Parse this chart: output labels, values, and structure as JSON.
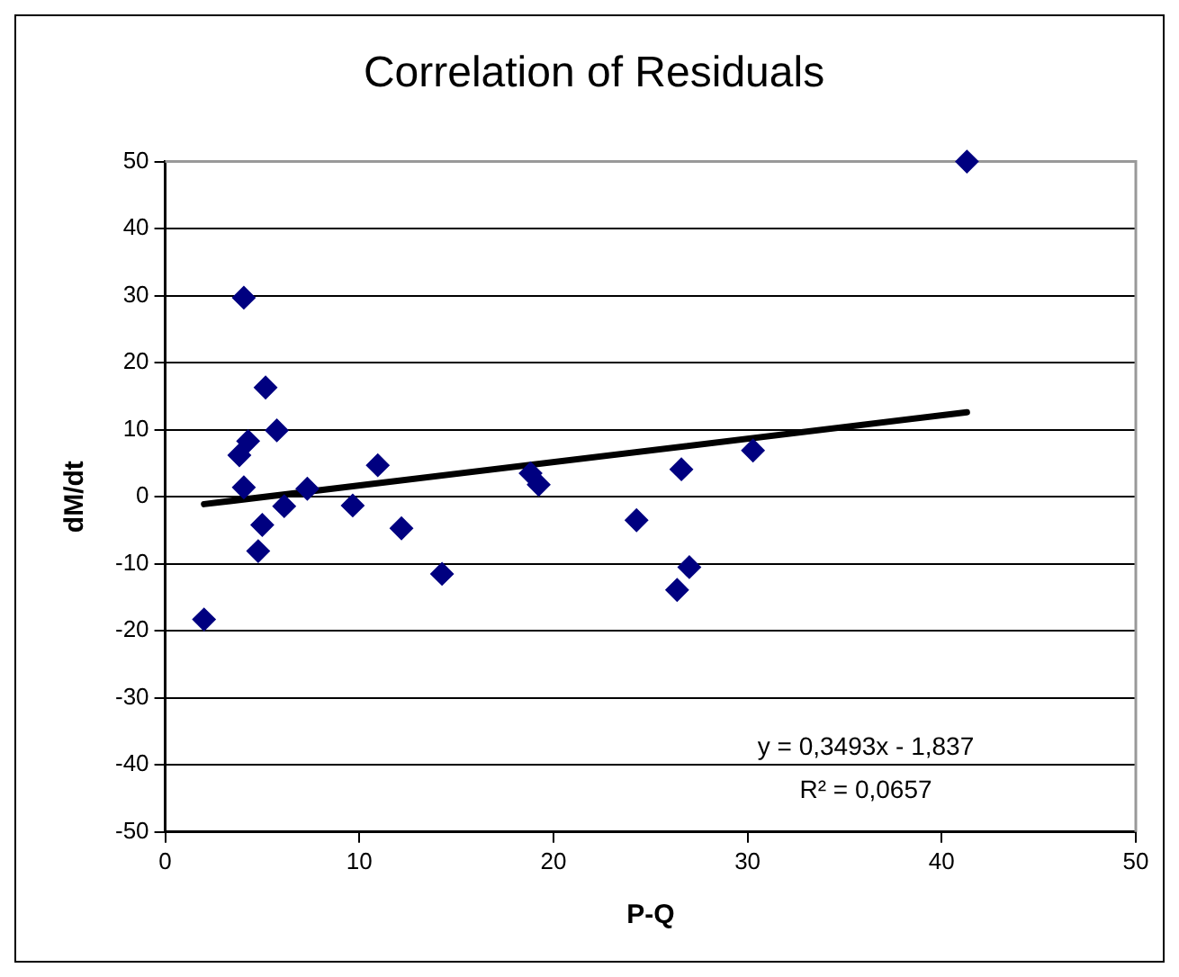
{
  "chart_data": {
    "type": "scatter",
    "title": "Correlation of Residuals",
    "xlabel": "P-Q",
    "ylabel": "dM/dt",
    "xlim": [
      0,
      50
    ],
    "xticks": [
      0,
      10,
      20,
      30,
      40,
      50
    ],
    "ylim": [
      -50,
      50
    ],
    "yticks": [
      -50,
      -40,
      -30,
      -20,
      -10,
      0,
      10,
      20,
      30,
      40,
      50
    ],
    "grid": "y",
    "legend": false,
    "marker": "diamond",
    "series": [
      {
        "color": "#000080",
        "x": [
          2.0,
          4.05,
          5.17,
          5.75,
          4.27,
          3.82,
          4.05,
          5.0,
          4.79,
          6.13,
          7.32,
          9.66,
          10.95,
          12.17,
          14.26,
          18.82,
          19.24,
          24.28,
          26.59,
          26.37,
          27.0,
          30.28,
          41.3
        ],
        "values": [
          -18.3,
          29.7,
          16.3,
          9.9,
          8.3,
          6.2,
          1.4,
          -4.2,
          -8.1,
          -1.4,
          1.2,
          -1.3,
          4.7,
          -4.7,
          -11.5,
          3.5,
          1.8,
          -3.5,
          4.1,
          -13.9,
          -10.5,
          6.9,
          50.0
        ]
      },
      {
        "type": "line",
        "color": "#000000",
        "marker": "none",
        "line_style": "solid",
        "x": [
          2.0,
          41.3
        ],
        "values": [
          -1.1,
          12.6
        ]
      }
    ],
    "annotations": [
      "y = 0,3493x - 1,837",
      "R² = 0,0657"
    ]
  }
}
